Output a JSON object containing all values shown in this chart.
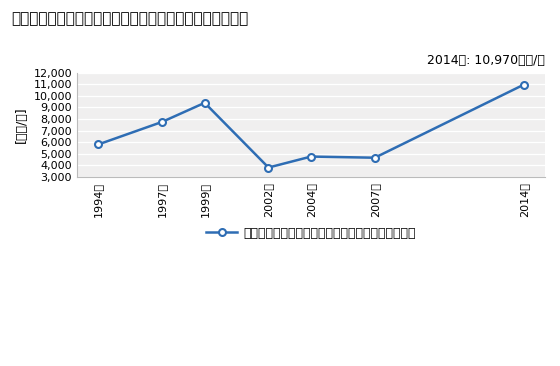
{
  "title": "各種商品卸売業の従業者一人当たり年間商品販売額の推移",
  "ylabel": "[万円/人]",
  "annotation": "2014年: 10,970万円/人",
  "years": [
    1994,
    1997,
    1999,
    2002,
    2004,
    2007,
    2014
  ],
  "values": [
    5800,
    7750,
    9400,
    3800,
    4750,
    4650,
    10970
  ],
  "ylim": [
    3000,
    12000
  ],
  "yticks": [
    3000,
    4000,
    5000,
    6000,
    7000,
    8000,
    9000,
    10000,
    11000,
    12000
  ],
  "line_color": "#2E6DB4",
  "marker_facecolor": "#FFFFFF",
  "marker_edgecolor": "#2E6DB4",
  "legend_label": "各種商品卸売業の従業者一人当たり年間商品販売額",
  "background_color": "#FFFFFF",
  "plot_bg_color": "#F0EFEF",
  "title_fontsize": 11,
  "label_fontsize": 9,
  "annotation_fontsize": 9,
  "tick_fontsize": 8,
  "legend_fontsize": 9
}
